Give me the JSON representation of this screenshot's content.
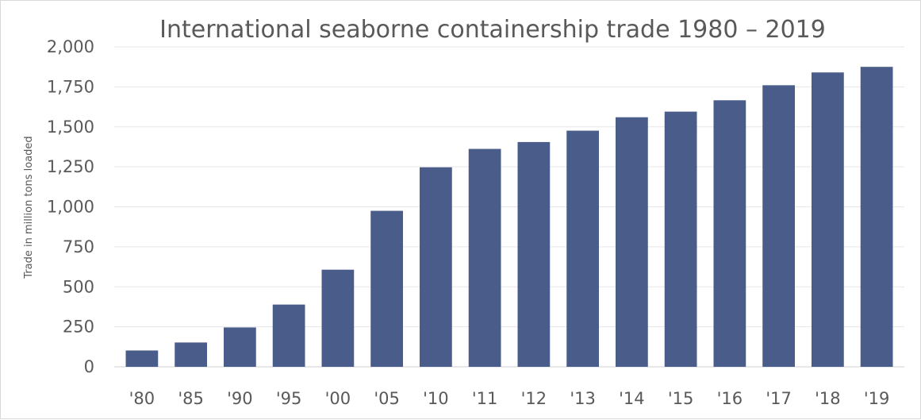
{
  "chart_data": {
    "type": "bar",
    "title": "International seaborne containership trade 1980 – 2019",
    "ylabel": "Trade in million tons loaded",
    "xlabel": "",
    "categories": [
      "'80",
      "'85",
      "'90",
      "'95",
      "'00",
      "'05",
      "'10",
      "'11",
      "'12",
      "'13",
      "'14",
      "'15",
      "'16",
      "'17",
      "'18",
      "'19"
    ],
    "values": [
      102,
      152,
      246,
      389,
      607,
      975,
      1247,
      1362,
      1405,
      1476,
      1560,
      1595,
      1666,
      1760,
      1840,
      1875
    ],
    "ylim": [
      0,
      2000
    ],
    "yticks": [
      0,
      250,
      500,
      750,
      1000,
      1250,
      1500,
      1750,
      2000
    ],
    "ytick_labels": [
      "0",
      "250",
      "500",
      "750",
      "1,000",
      "1,250",
      "1,500",
      "1,750",
      "2,000"
    ],
    "grid": true,
    "legend": "none",
    "bar_color": "#4a5d8a"
  }
}
